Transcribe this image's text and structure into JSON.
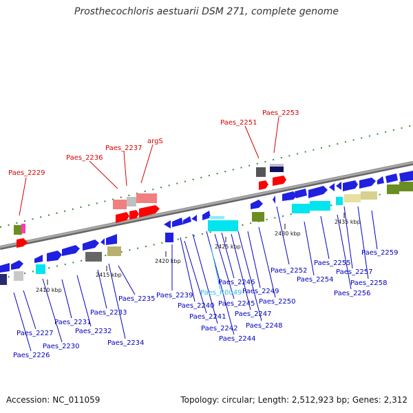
{
  "title": "Prosthecochloris aestuarii DSM 271, complete genome",
  "footer": {
    "accession": "Accession: NC_011059",
    "summary": "Topology: circular; Length: 2,512,923 bp; Genes: 2,312"
  },
  "colors": {
    "background": "#ffffff",
    "rna_label": "#d40000",
    "gene_label": "#0000c0",
    "ncrna_label": "#33bbee",
    "tick": "#1a7f1a",
    "backbone": "#8a8a8a"
  },
  "scale_labels": [
    "2410 kbp",
    "2415 kbp",
    "2420 kbp",
    "2425 kbp",
    "2430 kbp",
    "2435 kbp"
  ],
  "gene_labels": [
    "Paes_2229",
    "Paes_2236",
    "Paes_2237",
    "argS",
    "Paes_2251",
    "Paes_2253",
    "Paes_2226",
    "Paes_2227",
    "Paes_2230",
    "Paes_2231",
    "Paes_2232",
    "Paes_2233",
    "Paes_2234",
    "Paes_2235",
    "Paes_2239",
    "Paes_2240",
    "Paes_2241",
    "Paes_2242",
    "Paes_2244",
    "Paes_2245",
    "Paes_2246",
    "Paes_R0049",
    "Paes_2247",
    "Paes_2248",
    "Paes_2249",
    "Paes_2250",
    "Paes_2252",
    "Paes_2254",
    "Paes_2255",
    "Paes_2256",
    "Paes_2257",
    "Paes_2258",
    "Paes_2259"
  ]
}
